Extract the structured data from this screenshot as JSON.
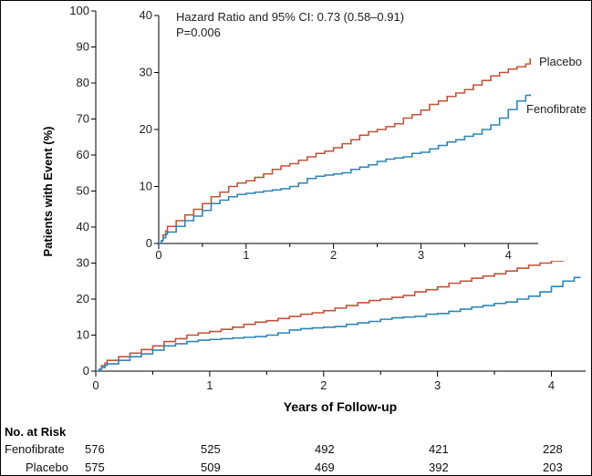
{
  "chart_data": [
    {
      "id": "main",
      "type": "line",
      "xlabel": "Years of Follow-up",
      "ylabel": "Patients with Event (%)",
      "xlim": [
        0,
        4.3
      ],
      "ylim": [
        0,
        100
      ],
      "x_ticks": [
        "0",
        "1",
        "2",
        "3",
        "4"
      ],
      "y_ticks": [
        "0",
        "10",
        "20",
        "30",
        "40",
        "50",
        "60",
        "70",
        "80",
        "90",
        "100"
      ],
      "series": [
        {
          "name": "Placebo",
          "color": "#c0533a",
          "x": [
            0.03,
            0.05,
            0.08,
            0.1,
            0.2,
            0.3,
            0.4,
            0.5,
            0.6,
            0.7,
            0.8,
            0.9,
            1.0,
            1.1,
            1.2,
            1.3,
            1.4,
            1.5,
            1.6,
            1.7,
            1.8,
            1.9,
            2.0,
            2.1,
            2.2,
            2.3,
            2.4,
            2.5,
            2.6,
            2.7,
            2.8,
            2.9,
            3.0,
            3.1,
            3.2,
            3.3,
            3.4,
            3.5,
            3.6,
            3.7,
            3.8,
            3.9,
            4.0,
            4.1,
            4.2,
            4.25
          ],
          "y": [
            0.5,
            1.5,
            2.2,
            3.0,
            4.0,
            5.0,
            6.0,
            7.0,
            8.2,
            9.0,
            10.0,
            10.6,
            11.0,
            11.6,
            12.2,
            13.0,
            13.6,
            14.0,
            14.6,
            15.2,
            15.8,
            16.2,
            16.8,
            17.5,
            18.2,
            19.0,
            19.6,
            20.0,
            20.5,
            21.0,
            22.0,
            22.6,
            23.4,
            24.4,
            25.0,
            25.8,
            26.4,
            27.0,
            27.8,
            28.6,
            29.4,
            30.0,
            30.6,
            31.0,
            31.5,
            32.5
          ]
        },
        {
          "name": "Fenofibrate",
          "color": "#2f86b4",
          "x": [
            0.03,
            0.05,
            0.08,
            0.1,
            0.2,
            0.3,
            0.4,
            0.5,
            0.6,
            0.7,
            0.8,
            0.9,
            1.0,
            1.1,
            1.2,
            1.3,
            1.4,
            1.5,
            1.6,
            1.7,
            1.8,
            1.9,
            2.0,
            2.1,
            2.2,
            2.3,
            2.4,
            2.5,
            2.6,
            2.7,
            2.8,
            2.9,
            3.0,
            3.1,
            3.2,
            3.3,
            3.4,
            3.5,
            3.6,
            3.7,
            3.8,
            3.9,
            4.0,
            4.1,
            4.2,
            4.25
          ],
          "y": [
            0.5,
            1.0,
            1.6,
            2.0,
            3.0,
            4.0,
            4.8,
            5.8,
            7.0,
            7.6,
            8.2,
            8.6,
            8.8,
            9.0,
            9.2,
            9.4,
            9.6,
            10.0,
            10.6,
            11.4,
            11.8,
            12.0,
            12.2,
            12.4,
            13.0,
            13.4,
            13.8,
            14.4,
            14.8,
            15.0,
            15.2,
            15.8,
            16.0,
            16.6,
            17.2,
            17.8,
            18.2,
            18.8,
            19.2,
            20.0,
            20.8,
            22.0,
            23.5,
            25.0,
            26.0,
            26.2
          ]
        }
      ],
      "risk_table": {
        "title": "No. at Risk",
        "rows": [
          {
            "label": "Fenofibrate",
            "values": [
              "576",
              "525",
              "492",
              "421",
              "228"
            ]
          },
          {
            "label": "Placebo",
            "values": [
              "575",
              "509",
              "469",
              "392",
              "203"
            ]
          }
        ]
      }
    },
    {
      "id": "inset",
      "type": "line",
      "xlim": [
        0,
        4.3
      ],
      "ylim": [
        0,
        40
      ],
      "x_ticks": [
        "0",
        "1",
        "2",
        "3",
        "4"
      ],
      "y_ticks": [
        "0",
        "10",
        "20",
        "30",
        "40"
      ],
      "annotations": [
        "Hazard Ratio and 95% CI: 0.73 (0.58–0.91)",
        "P=0.006"
      ],
      "series": [
        {
          "name": "Placebo",
          "color": "#c0533a",
          "x": [
            0.03,
            0.05,
            0.08,
            0.1,
            0.2,
            0.3,
            0.4,
            0.5,
            0.6,
            0.7,
            0.8,
            0.9,
            1.0,
            1.1,
            1.2,
            1.3,
            1.4,
            1.5,
            1.6,
            1.7,
            1.8,
            1.9,
            2.0,
            2.1,
            2.2,
            2.3,
            2.4,
            2.5,
            2.6,
            2.7,
            2.8,
            2.9,
            3.0,
            3.1,
            3.2,
            3.3,
            3.4,
            3.5,
            3.6,
            3.7,
            3.8,
            3.9,
            4.0,
            4.1,
            4.2,
            4.25
          ],
          "y": [
            0.5,
            1.5,
            2.2,
            3.0,
            4.0,
            5.0,
            6.0,
            7.0,
            8.2,
            9.0,
            10.0,
            10.6,
            11.0,
            11.6,
            12.2,
            13.0,
            13.6,
            14.0,
            14.6,
            15.2,
            15.8,
            16.2,
            16.8,
            17.5,
            18.2,
            19.0,
            19.6,
            20.0,
            20.5,
            21.0,
            22.0,
            22.6,
            23.4,
            24.4,
            25.0,
            25.8,
            26.4,
            27.0,
            27.8,
            28.6,
            29.4,
            30.0,
            30.6,
            31.0,
            31.5,
            32.5
          ]
        },
        {
          "name": "Fenofibrate",
          "color": "#2f86b4",
          "x": [
            0.03,
            0.05,
            0.08,
            0.1,
            0.2,
            0.3,
            0.4,
            0.5,
            0.6,
            0.7,
            0.8,
            0.9,
            1.0,
            1.1,
            1.2,
            1.3,
            1.4,
            1.5,
            1.6,
            1.7,
            1.8,
            1.9,
            2.0,
            2.1,
            2.2,
            2.3,
            2.4,
            2.5,
            2.6,
            2.7,
            2.8,
            2.9,
            3.0,
            3.1,
            3.2,
            3.3,
            3.4,
            3.5,
            3.6,
            3.7,
            3.8,
            3.9,
            4.0,
            4.1,
            4.2,
            4.25
          ],
          "y": [
            0.5,
            1.0,
            1.6,
            2.0,
            3.0,
            4.0,
            4.8,
            5.8,
            7.0,
            7.6,
            8.2,
            8.6,
            8.8,
            9.0,
            9.2,
            9.4,
            9.6,
            10.0,
            10.6,
            11.4,
            11.8,
            12.0,
            12.2,
            12.4,
            13.0,
            13.4,
            13.8,
            14.4,
            14.8,
            15.0,
            15.2,
            15.8,
            16.0,
            16.6,
            17.2,
            17.8,
            18.2,
            18.8,
            19.2,
            20.0,
            20.8,
            22.0,
            23.5,
            25.0,
            26.0,
            26.2
          ]
        }
      ]
    }
  ]
}
